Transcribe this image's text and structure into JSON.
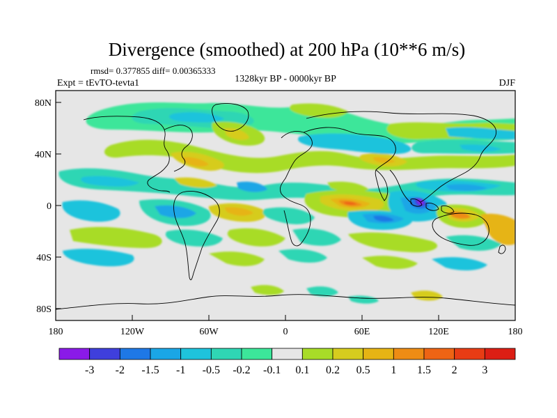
{
  "chart_data": {
    "type": "heatmap",
    "title": "Divergence (smoothed) at 200 hPa (10**6 m/s)",
    "stats": "rmsd= 0.377855 diff= 0.00365333",
    "experiment": "Expt = tEvTO-tevta1",
    "period": "1328kyr BP - 0000kyr BP",
    "season": "DJF",
    "x_ticks": [
      "180",
      "120W",
      "60W",
      "0",
      "60E",
      "120E",
      "180"
    ],
    "y_ticks": [
      "80N",
      "40N",
      "0",
      "40S",
      "80S"
    ],
    "xlim": [
      -180,
      180
    ],
    "ylim": [
      -90,
      90
    ],
    "colorbar": {
      "labels": [
        "-3",
        "-2",
        "-1.5",
        "-1",
        "-0.5",
        "-0.2",
        "-0.1",
        "0.1",
        "0.2",
        "0.5",
        "1",
        "1.5",
        "2",
        "3"
      ],
      "colors": [
        "#8a1ae8",
        "#3f3fdc",
        "#1e78e6",
        "#1aa6e6",
        "#1ec3dc",
        "#2fd6b4",
        "#3ce69a",
        "#e6e6e6",
        "#a8dc28",
        "#d6cc1e",
        "#e6b414",
        "#ee8c14",
        "#ee6414",
        "#e83c14",
        "#dc1e14"
      ]
    },
    "features": [
      {
        "lon": 103,
        "lat": 3,
        "value": -3
      },
      {
        "lon": 110,
        "lat": 0,
        "value": -2
      },
      {
        "lon": 75,
        "lat": -12,
        "value": -1.5
      },
      {
        "lon": 50,
        "lat": 0,
        "value": 2
      },
      {
        "lon": 122,
        "lat": -8,
        "value": 1.5
      }
    ]
  }
}
